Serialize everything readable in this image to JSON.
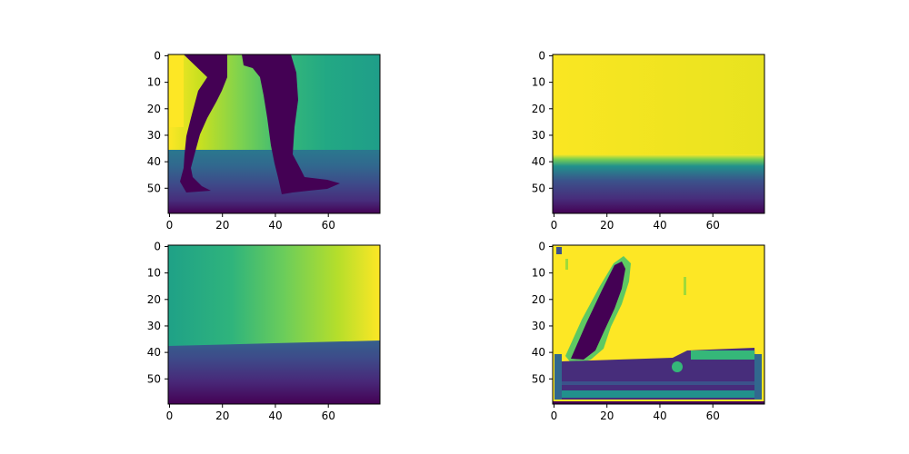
{
  "chart_data": [
    {
      "type": "heatmap",
      "panel": "top-left",
      "colormap": "viridis",
      "grid": false,
      "x_ticks": [
        0,
        20,
        40,
        60
      ],
      "y_ticks": [
        0,
        10,
        20,
        30,
        40,
        50
      ],
      "xlim": [
        -0.5,
        79.5
      ],
      "ylim": [
        59.5,
        -0.5
      ],
      "image_size": [
        80,
        60
      ],
      "content": "walking legs silhouette (dark) over a horizontal gradient; floor boundary near row 36"
    },
    {
      "type": "heatmap",
      "panel": "top-right",
      "colormap": "viridis",
      "grid": false,
      "x_ticks": [
        0,
        20,
        40,
        60
      ],
      "y_ticks": [
        0,
        10,
        20,
        30,
        40,
        50
      ],
      "xlim": [
        -0.5,
        79.5
      ],
      "ylim": [
        59.5,
        -0.5
      ],
      "image_size": [
        80,
        60
      ],
      "content": "nearly uniform yellow above row 37, vertical yellow-to-purple gradient below"
    },
    {
      "type": "heatmap",
      "panel": "bottom-left",
      "colormap": "viridis",
      "grid": false,
      "x_ticks": [
        0,
        20,
        40,
        60
      ],
      "y_ticks": [
        0,
        10,
        20,
        30,
        40,
        50
      ],
      "xlim": [
        -0.5,
        79.5
      ],
      "ylim": [
        59.5,
        -0.5
      ],
      "image_size": [
        80,
        60
      ],
      "content": "horizontal teal-to-yellow gradient above row 37, vertical purple gradient below"
    },
    {
      "type": "heatmap",
      "panel": "bottom-right",
      "colormap": "viridis",
      "grid": false,
      "x_ticks": [
        0,
        20,
        40,
        60
      ],
      "y_ticks": [
        0,
        10,
        20,
        30,
        40,
        50
      ],
      "xlim": [
        -0.5,
        79.5
      ],
      "ylim": [
        59.5,
        -0.5
      ],
      "image_size": [
        80,
        60
      ],
      "content": "mostly yellow with a dark diagonal leg-like stroke and a dark band near the bottom"
    }
  ]
}
